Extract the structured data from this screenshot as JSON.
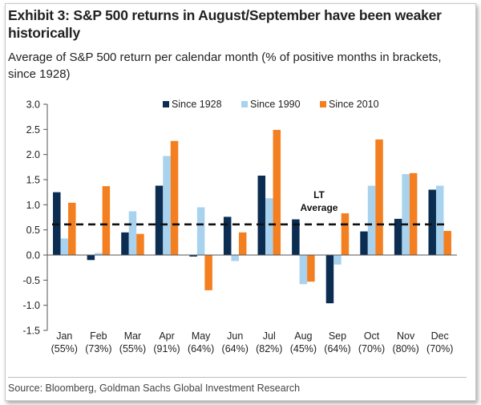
{
  "title": "Exhibit 3: S&P 500 returns in August/September have been weaker historically",
  "subtitle": "Average of S&P 500 return per calendar month (% of positive months in brackets, since 1928)",
  "source": "Source: Bloomberg, Goldman Sachs Global Investment Research",
  "colors": {
    "s1928": "#0b2d52",
    "s1990": "#a9d2ee",
    "s2010": "#f47f20",
    "lt_line": "#111111"
  },
  "chart_data": {
    "type": "bar",
    "title": "Average of S&P 500 return per calendar month (% of positive months in brackets, since 1928)",
    "xlabel": "",
    "ylabel": "",
    "ylim": [
      -1.5,
      3.0
    ],
    "yticks": [
      "3.0",
      "2.5",
      "2.0",
      "1.5",
      "1.0",
      "0.5",
      "0.0",
      "-0.5",
      "-1.0",
      "-1.5"
    ],
    "ytick_values": [
      3.0,
      2.5,
      2.0,
      1.5,
      1.0,
      0.5,
      0.0,
      -0.5,
      -1.0,
      -1.5
    ],
    "categories": [
      "Jan",
      "Feb",
      "Mar",
      "Apr",
      "May",
      "Jun",
      "Jul",
      "Aug",
      "Sep",
      "Oct",
      "Nov",
      "Dec"
    ],
    "category_sublabels": [
      "(55%)",
      "(73%)",
      "(55%)",
      "(91%)",
      "(64%)",
      "(64%)",
      "(82%)",
      "(45%)",
      "(64%)",
      "(70%)",
      "(80%)",
      "(70%)"
    ],
    "series": [
      {
        "name": "Since 1928",
        "values": [
          1.25,
          -0.1,
          0.45,
          1.38,
          -0.03,
          0.76,
          1.58,
          0.71,
          -0.96,
          0.47,
          0.72,
          1.3
        ]
      },
      {
        "name": "Since 1990",
        "values": [
          0.33,
          0.04,
          0.87,
          1.97,
          0.95,
          -0.12,
          1.13,
          -0.58,
          -0.19,
          1.38,
          1.61,
          1.38
        ]
      },
      {
        "name": "Since 2010",
        "values": [
          1.04,
          1.37,
          0.42,
          2.27,
          -0.7,
          0.45,
          2.49,
          -0.53,
          0.83,
          2.3,
          1.63,
          0.48
        ]
      }
    ],
    "reference_line": {
      "label_line1": "LT",
      "label_line2": "Average",
      "value": 0.61
    },
    "legend_position": "top",
    "grid": false
  }
}
